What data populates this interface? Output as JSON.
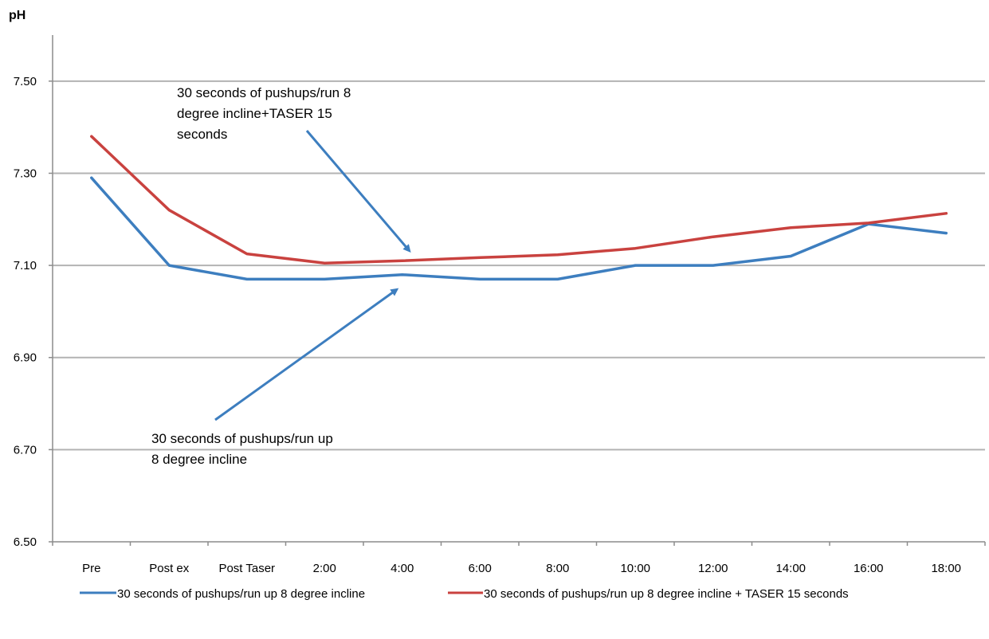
{
  "chart_data": {
    "type": "line",
    "ylabel": "pH",
    "xlabel": "",
    "title": "",
    "ylim": [
      6.5,
      7.6
    ],
    "yticks": [
      "6.50",
      "6.70",
      "6.90",
      "7.10",
      "7.30",
      "7.50"
    ],
    "ytick_values": [
      6.5,
      6.7,
      6.9,
      7.1,
      7.3,
      7.5
    ],
    "categories": [
      "Pre",
      "Post ex",
      "Post Taser",
      "2:00",
      "4:00",
      "6:00",
      "8:00",
      "10:00",
      "12:00",
      "14:00",
      "16:00",
      "18:00"
    ],
    "grid": "horizontal",
    "legend_position": "bottom",
    "series": [
      {
        "name": "30 seconds of pushups/run up 8 degree incline",
        "color": "#3d7ebf",
        "values": [
          7.29,
          7.1,
          7.07,
          7.07,
          7.08,
          7.07,
          7.07,
          7.1,
          7.1,
          7.12,
          7.19,
          7.17
        ]
      },
      {
        "name": "30 seconds of pushups/run up 8 degree incline + TASER 15 seconds",
        "color": "#c9423f",
        "values": [
          7.38,
          7.22,
          7.125,
          7.105,
          7.11,
          7.117,
          7.123,
          7.137,
          7.162,
          7.182,
          7.192,
          7.213
        ]
      }
    ],
    "annotations": [
      {
        "lines": [
          "30 seconds of pushups/run 8",
          "degree incline+TASER 15",
          "seconds"
        ],
        "arrow_to_series": 1,
        "arrow_category": "4:00"
      },
      {
        "lines": [
          "30 seconds of pushups/run up",
          "8 degree incline"
        ],
        "arrow_to_series": 0,
        "arrow_category": "4:00"
      }
    ]
  }
}
